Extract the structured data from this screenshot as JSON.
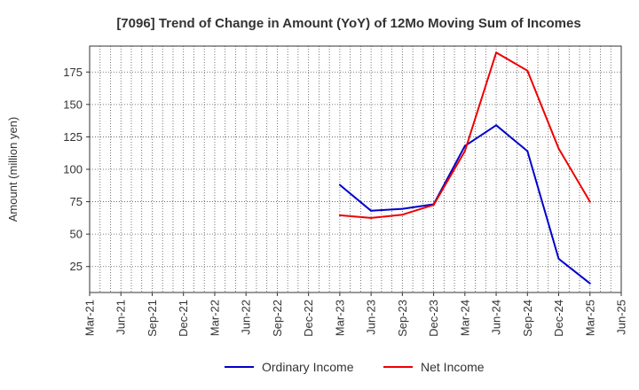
{
  "chart_data": {
    "type": "line",
    "title": "[7096]  Trend of Change in Amount (YoY) of 12Mo Moving Sum of Incomes",
    "ylabel": "Amount (million yen)",
    "xlabel": "",
    "x_ticks": [
      "Mar-21",
      "Jun-21",
      "Sep-21",
      "Dec-21",
      "Mar-22",
      "Jun-22",
      "Sep-22",
      "Dec-22",
      "Mar-23",
      "Jun-23",
      "Sep-23",
      "Dec-23",
      "Mar-24",
      "Jun-24",
      "Sep-24",
      "Dec-24",
      "Mar-25",
      "Jun-25"
    ],
    "y_ticks": [
      25,
      50,
      75,
      100,
      125,
      150,
      175
    ],
    "ylim": [
      5,
      195
    ],
    "grid": true,
    "legend_position": "bottom",
    "series": [
      {
        "name": "Ordinary Income",
        "color": "#0000cc",
        "x": [
          "Mar-23",
          "Jun-23",
          "Sep-23",
          "Dec-23",
          "Mar-24",
          "Jun-24",
          "Sep-24",
          "Dec-24",
          "Mar-25"
        ],
        "values": [
          88,
          68,
          69.5,
          73,
          118,
          134,
          114,
          31,
          12
        ]
      },
      {
        "name": "Net Income",
        "color": "#ee0000",
        "x": [
          "Mar-23",
          "Jun-23",
          "Sep-23",
          "Dec-23",
          "Mar-24",
          "Jun-24",
          "Sep-24",
          "Dec-24",
          "Mar-25"
        ],
        "values": [
          64.5,
          62.5,
          65,
          72.5,
          114,
          190,
          176,
          116,
          75
        ]
      }
    ]
  }
}
